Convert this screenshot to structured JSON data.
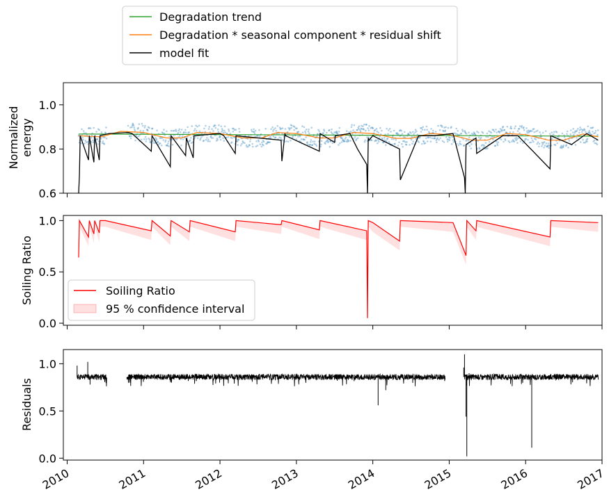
{
  "legend_top": {
    "entries": [
      {
        "label": "Degradation trend",
        "color": "#2ca02c"
      },
      {
        "label": "Degradation * seasonal component * residual shift",
        "color": "#ff7f0e"
      },
      {
        "label": "model fit",
        "color": "#000000"
      }
    ]
  },
  "chart_data": [
    {
      "type": "line",
      "ylabel": "Normalized\nenergy",
      "xlim": [
        2009.95,
        2017.0
      ],
      "ylim": [
        0.6,
        1.1
      ],
      "yticks": [
        "0.6",
        "0.8",
        "1.0"
      ],
      "yticks_values": [
        0.6,
        0.8,
        1.0
      ],
      "series": [
        {
          "name": "Degradation trend",
          "color": "#2ca02c",
          "x": [
            2010.15,
            2016.95
          ],
          "y": [
            0.868,
            0.858
          ]
        },
        {
          "name": "Degradation * seasonal component * residual shift",
          "color": "#ff7f0e",
          "x": [
            2010.15,
            2010.45,
            2010.7,
            2011.0,
            2011.3,
            2011.5,
            2011.7,
            2012.0,
            2012.3,
            2012.55,
            2012.75,
            2013.0,
            2013.3,
            2013.5,
            2013.75,
            2014.0,
            2014.3,
            2014.5,
            2014.75,
            2015.0,
            2015.3,
            2015.5,
            2015.75,
            2016.0,
            2016.3,
            2016.5,
            2016.75,
            2016.95
          ],
          "y": [
            0.86,
            0.855,
            0.88,
            0.875,
            0.85,
            0.85,
            0.875,
            0.87,
            0.85,
            0.85,
            0.875,
            0.87,
            0.85,
            0.85,
            0.875,
            0.87,
            0.848,
            0.848,
            0.87,
            0.865,
            0.84,
            0.84,
            0.87,
            0.865,
            0.84,
            0.84,
            0.868,
            0.855
          ]
        },
        {
          "name": "model fit",
          "color": "#000000",
          "x": [
            2010.15,
            2010.16,
            2010.17,
            2010.28,
            2010.29,
            2010.35,
            2010.36,
            2010.42,
            2010.43,
            2010.55,
            2010.8,
            2010.85,
            2011.1,
            2011.11,
            2011.35,
            2011.36,
            2011.55,
            2011.56,
            2011.65,
            2011.66,
            2012.0,
            2012.05,
            2012.2,
            2012.21,
            2012.8,
            2012.81,
            2012.85,
            2012.86,
            2013.3,
            2013.31,
            2013.5,
            2013.51,
            2013.7,
            2013.8,
            2013.92,
            2013.93,
            2013.94,
            2013.95,
            2014.0,
            2014.35,
            2014.36,
            2014.6,
            2014.8,
            2015.05,
            2015.2,
            2015.21,
            2015.22,
            2015.35,
            2015.36,
            2015.7,
            2015.9,
            2016.32,
            2016.33,
            2016.6,
            2016.8,
            2016.95
          ],
          "y": [
            0.6,
            0.68,
            0.86,
            0.75,
            0.86,
            0.74,
            0.86,
            0.75,
            0.86,
            0.87,
            0.875,
            0.87,
            0.79,
            0.86,
            0.72,
            0.86,
            0.77,
            0.85,
            0.76,
            0.86,
            0.87,
            0.86,
            0.78,
            0.86,
            0.84,
            0.745,
            0.87,
            0.86,
            0.79,
            0.87,
            0.83,
            0.86,
            0.87,
            0.8,
            0.73,
            0.6,
            0.85,
            0.84,
            0.86,
            0.8,
            0.66,
            0.86,
            0.86,
            0.87,
            0.67,
            0.6,
            0.82,
            0.85,
            0.78,
            0.86,
            0.86,
            0.71,
            0.86,
            0.82,
            0.87,
            0.84
          ]
        },
        {
          "name": "",
          "color": "#1f77b4",
          "style": "scatter",
          "x": [
            2010.3,
            2011.2,
            2012.2,
            2013.2,
            2014.2,
            2015.2,
            2016.2
          ],
          "y": [
            0.86,
            0.84,
            0.86,
            0.85,
            0.85,
            0.84,
            0.86
          ]
        }
      ]
    },
    {
      "type": "line",
      "ylabel": "Soiling Ratio",
      "xlim": [
        2009.95,
        2017.0
      ],
      "ylim": [
        -0.02,
        1.05
      ],
      "yticks": [
        "0.0",
        "0.5",
        "1.0"
      ],
      "yticks_values": [
        0.0,
        0.5,
        1.0
      ],
      "legend": {
        "position": "lower left",
        "entries": [
          "Soiling Ratio",
          "95 % confidence interval"
        ]
      },
      "series": [
        {
          "name": "Soiling Ratio",
          "color": "#ff0000",
          "x": [
            2010.15,
            2010.16,
            2010.28,
            2010.29,
            2010.35,
            2010.36,
            2010.42,
            2010.43,
            2010.5,
            2011.1,
            2011.11,
            2011.35,
            2011.36,
            2011.6,
            2011.61,
            2012.2,
            2012.21,
            2012.8,
            2012.81,
            2013.3,
            2013.31,
            2013.92,
            2013.93,
            2013.94,
            2014.0,
            2014.35,
            2014.36,
            2015.05,
            2015.22,
            2015.23,
            2015.35,
            2015.36,
            2016.32,
            2016.33,
            2016.95
          ],
          "y": [
            0.64,
            1.0,
            0.84,
            1.0,
            0.87,
            1.0,
            0.88,
            1.0,
            1.0,
            0.9,
            1.0,
            0.85,
            1.0,
            0.89,
            1.0,
            0.89,
            1.0,
            0.96,
            1.0,
            0.91,
            1.0,
            0.9,
            0.05,
            1.0,
            0.98,
            0.8,
            1.0,
            0.98,
            0.66,
            1.0,
            0.9,
            1.0,
            0.84,
            1.0,
            0.98
          ]
        },
        {
          "name": "95 % confidence interval",
          "color": "#ffcccc",
          "style": "band",
          "width": 0.06
        }
      ]
    },
    {
      "type": "line",
      "ylabel": "Residuals",
      "xlim": [
        2009.95,
        2017.0
      ],
      "ylim": [
        -0.02,
        1.15
      ],
      "yticks": [
        "0.0",
        "0.5",
        "1.0"
      ],
      "yticks_values": [
        0.0,
        0.5,
        1.0
      ],
      "xticks": [
        "2010",
        "2011",
        "2012",
        "2013",
        "2014",
        "2015",
        "2016",
        "2017"
      ],
      "xticks_values": [
        2010,
        2011,
        2012,
        2013,
        2014,
        2015,
        2016,
        2017
      ],
      "series": [
        {
          "name": "",
          "color": "#000000",
          "segments": [
            [
              2010.13,
              2010.52
            ],
            [
              2010.78,
              2014.95
            ],
            [
              2015.2,
              2016.95
            ]
          ],
          "baseline": 0.86,
          "spikes": [
            {
              "x": 2010.13,
              "y": 0.98
            },
            {
              "x": 2010.27,
              "y": 1.02
            },
            {
              "x": 2010.3,
              "y": 0.78
            },
            {
              "x": 2014.07,
              "y": 0.56
            },
            {
              "x": 2014.17,
              "y": 0.72
            },
            {
              "x": 2015.2,
              "y": 1.1
            },
            {
              "x": 2015.19,
              "y": 0.96
            },
            {
              "x": 2015.23,
              "y": 0.02
            },
            {
              "x": 2015.22,
              "y": 0.44
            },
            {
              "x": 2015.26,
              "y": 0.9
            },
            {
              "x": 2016.08,
              "y": 0.11
            }
          ]
        }
      ]
    }
  ]
}
